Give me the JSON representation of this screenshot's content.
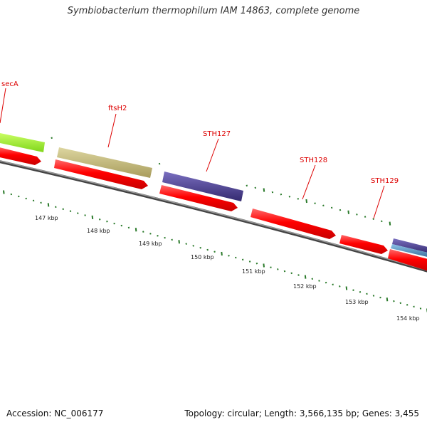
{
  "title": "Symbiobacterium thermophilum IAM 14863, complete genome",
  "footer": {
    "accession": "Accession: NC_006177",
    "topology": "Topology: circular; Length: 3,566,135 bp; Genes: 3,455"
  },
  "genes": [
    {
      "name": "secA",
      "color": "#e00000"
    },
    {
      "name": "ftsH2",
      "color": "#e00000"
    },
    {
      "name": "STH127",
      "color": "#e00000"
    },
    {
      "name": "STH128",
      "color": "#e00000"
    },
    {
      "name": "STH129",
      "color": "#e00000"
    }
  ],
  "kbp_ticks": [
    "147 kbp",
    "148 kbp",
    "149 kbp",
    "150 kbp",
    "151 kbp",
    "152 kbp",
    "153 kbp",
    "154 kbp"
  ],
  "colors": {
    "cds_red": "#ff0000",
    "lime": "#99ee22",
    "khaki": "#c2b87a",
    "purple": "#4a3f8f",
    "steel": "#4a86b8",
    "backbone": "#777777",
    "tick_green": "#2a7a2a"
  }
}
